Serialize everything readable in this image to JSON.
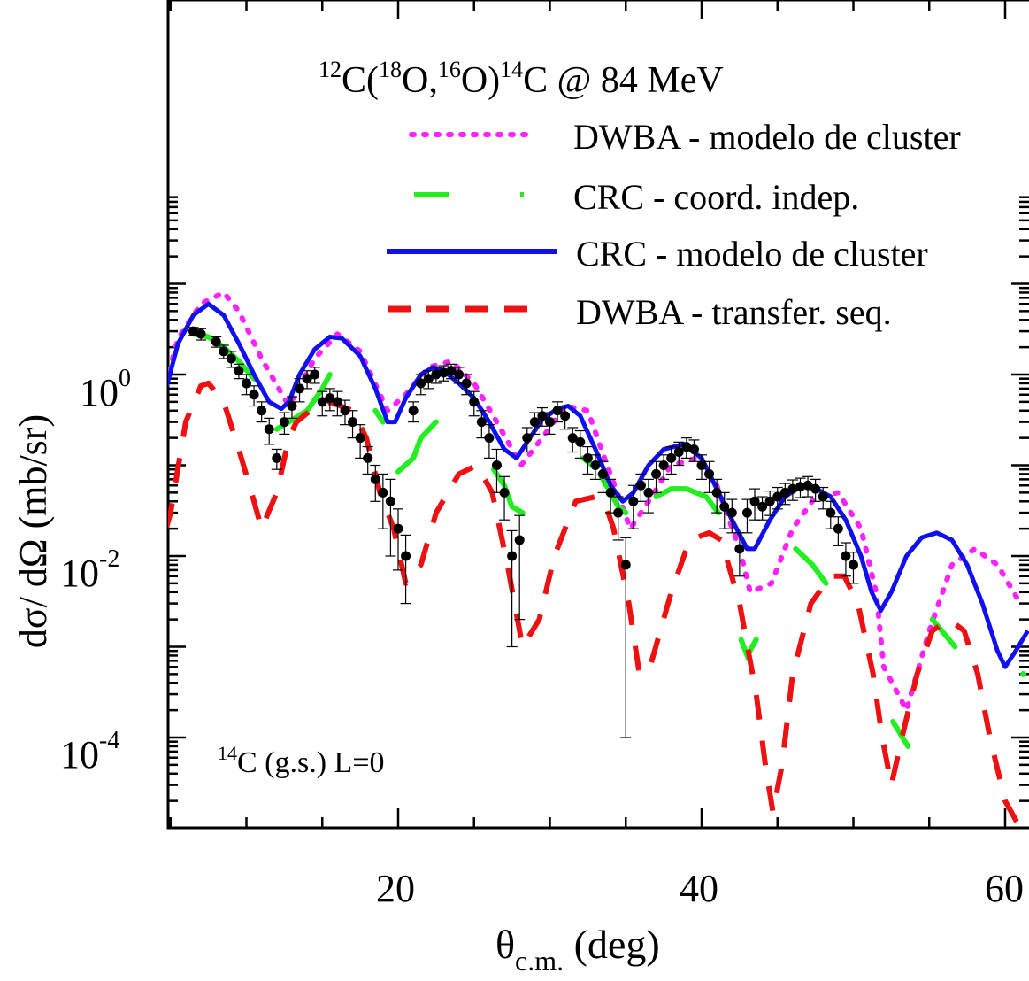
{
  "chart_data": {
    "type": "scatter",
    "title": "12C(18O,16O)14C @ 84 MeV",
    "title_parts": {
      "a1": "12",
      "a2": "C(",
      "a3": "18",
      "a4": "O,",
      "a5": "16",
      "a6": "O)",
      "a7": "14",
      "a8": "C @ 84 MeV"
    },
    "xlabel": "θc.m. (deg)",
    "xlabel_parts": {
      "main": "θ",
      "sub": "c.m.",
      "rest": " (deg)"
    },
    "ylabel": "dσ/ dΩ (mb/sr)",
    "annotation": "14C (g.s.) L=0",
    "annotation_parts": {
      "sup": "14",
      "rest": "C (g.s.) L=0"
    },
    "x_scale": "linear",
    "y_scale": "log",
    "xlim": [
      3,
      61.5
    ],
    "ylim": [
      8e-06,
      40
    ],
    "x_ticks": [
      20,
      40,
      60
    ],
    "x_tick_labels": [
      "20",
      "40",
      "60"
    ],
    "y_tick_labels": [
      {
        "base": "10",
        "exp": "0",
        "value": 1
      },
      {
        "base": "10",
        "exp": "-2",
        "value": 0.01
      },
      {
        "base": "10",
        "exp": "-4",
        "value": 0.0001
      }
    ],
    "grid": false,
    "legend_position": "top-right",
    "series": [
      {
        "name": "DWBA - modelo de cluster",
        "color": "#ff22ff",
        "style": "dotted",
        "x": [
          3,
          4.5,
          5.5,
          7,
          8.5,
          9.5,
          11,
          12.8,
          14.5,
          16,
          17.5,
          19.3,
          20.5,
          22,
          23.5,
          25,
          26.5,
          28.1,
          29.5,
          31,
          32.5,
          33.6,
          35.3,
          36.5,
          38,
          39.7,
          41,
          42.5,
          43.2,
          44.6,
          46,
          47.5,
          49,
          50.5,
          51.5,
          52,
          53.5,
          55,
          56.5,
          58,
          59.5,
          61
        ],
        "y": [
          1.5,
          0.6,
          2.5,
          6,
          8,
          5,
          1.5,
          0.45,
          1.5,
          2.8,
          1.8,
          0.4,
          0.6,
          1.2,
          1.4,
          0.8,
          0.3,
          0.1,
          0.2,
          0.45,
          0.4,
          0.12,
          0.02,
          0.04,
          0.1,
          0.12,
          0.06,
          0.012,
          0.004,
          0.005,
          0.02,
          0.045,
          0.05,
          0.02,
          0.004,
          0.0006,
          0.0002,
          0.0015,
          0.008,
          0.012,
          0.008,
          0.003
        ]
      },
      {
        "name": "CRC - coord. indep.",
        "color": "#22ee22",
        "style": "dash-dot",
        "segments": [
          {
            "x": [
              3,
              3.5,
              4,
              4.5
            ],
            "y": [
              0.3,
              0.12,
              0.15,
              0.2
            ]
          },
          {
            "x": [
              6.5,
              7.5,
              8.5,
              9.5,
              10.5
            ],
            "y": [
              2.8,
              2.6,
              2.0,
              1.4,
              0.9
            ]
          },
          {
            "x": [
              12,
              12.8,
              14,
              15,
              15.5
            ],
            "y": [
              0.25,
              0.3,
              0.4,
              0.7,
              1.0
            ]
          },
          {
            "x": [
              18.5,
              19
            ],
            "y": [
              0.4,
              0.3
            ]
          },
          {
            "x": [
              20,
              21,
              21.5,
              22.5
            ],
            "y": [
              0.085,
              0.12,
              0.2,
              0.3
            ]
          },
          {
            "x": [
              26.3,
              27,
              27.5,
              28.2
            ],
            "y": [
              0.09,
              0.06,
              0.035,
              0.03
            ]
          },
          {
            "x": [
              32.2,
              32.8
            ],
            "y": [
              0.12,
              0.1
            ]
          },
          {
            "x": [
              33.3,
              34,
              34.5,
              35
            ],
            "y": [
              0.08,
              0.05,
              0.035,
              0.03
            ]
          },
          {
            "x": [
              37,
              38,
              39,
              40.3,
              41.1
            ],
            "y": [
              0.045,
              0.055,
              0.055,
              0.045,
              0.03
            ]
          },
          {
            "x": [
              42.6,
              43,
              43.6
            ],
            "y": [
              0.0012,
              0.0008,
              0.0012
            ]
          },
          {
            "x": [
              46.2,
              47.3,
              48.2
            ],
            "y": [
              0.012,
              0.008,
              0.005
            ]
          },
          {
            "x": [
              52.6,
              53.6
            ],
            "y": [
              0.00015,
              8e-05
            ]
          },
          {
            "x": [
              55.2,
              56.7
            ],
            "y": [
              0.002,
              0.001
            ]
          },
          {
            "x": [
              61.2
            ],
            "y": [
              0.0005
            ]
          }
        ]
      },
      {
        "name": "CRC - modelo de cluster",
        "color": "#1010ee",
        "style": "solid",
        "x": [
          3,
          3.5,
          4,
          4.8,
          5.5,
          6.5,
          7.5,
          8.5,
          9.5,
          10.5,
          11.5,
          12.3,
          12.8,
          13.5,
          14.5,
          15.5,
          16.3,
          17.5,
          18.5,
          19.3,
          19.8,
          20.5,
          21.5,
          22.3,
          23,
          24,
          25,
          26,
          27,
          27.8,
          28.5,
          29.5,
          30.5,
          31.2,
          32,
          33,
          34,
          34.8,
          35.5,
          36.5,
          37.5,
          38.8,
          40,
          41,
          42,
          43,
          43.5,
          44.5,
          45.5,
          46.5,
          47.3,
          48.5,
          49.5,
          50.5,
          51.2,
          51.8,
          52.5,
          53.5,
          54.5,
          55.5,
          56.5,
          57.5,
          58.5,
          59.5,
          60,
          60.7,
          61.5
        ],
        "y": [
          0.8,
          0.5,
          0.3,
          0.8,
          2.2,
          4.5,
          6,
          4.5,
          2.2,
          1.0,
          0.5,
          0.42,
          0.5,
          1.0,
          1.9,
          2.6,
          2.5,
          1.6,
          0.7,
          0.3,
          0.3,
          0.55,
          1.0,
          1.2,
          1.1,
          0.8,
          0.55,
          0.3,
          0.15,
          0.12,
          0.18,
          0.32,
          0.42,
          0.45,
          0.35,
          0.15,
          0.06,
          0.04,
          0.05,
          0.1,
          0.15,
          0.17,
          0.12,
          0.055,
          0.025,
          0.012,
          0.012,
          0.025,
          0.045,
          0.058,
          0.058,
          0.045,
          0.025,
          0.01,
          0.004,
          0.0025,
          0.004,
          0.01,
          0.016,
          0.018,
          0.015,
          0.008,
          0.003,
          0.0009,
          0.0006,
          0.0009,
          0.0015
        ]
      },
      {
        "name": "DWBA - transfer. seq.",
        "color": "#ee1111",
        "style": "dashed",
        "x": [
          3,
          3.5,
          4,
          4.5,
          5,
          6,
          7,
          7.5,
          8.5,
          9.5,
          10.5,
          11,
          12,
          12.8,
          13.3,
          14.2,
          15.5,
          17,
          17.9,
          18.8,
          19.7,
          20.5,
          21.5,
          22.5,
          24,
          25.2,
          26.2,
          27.2,
          28.2,
          29.3,
          30.3,
          31.7,
          33,
          33.6,
          34.2,
          35.2,
          35.9,
          36.6,
          38,
          39.2,
          40.5,
          41.3,
          42.5,
          43.6,
          44.2,
          44.7,
          45.3,
          46,
          47.2,
          48.5,
          49.4,
          50.3,
          51.3,
          51.9,
          52.5,
          53.2,
          54.2,
          55.2,
          56.3,
          57.3,
          58.2,
          59,
          60,
          61
        ],
        "y": [
          0.1,
          0.05,
          0.02,
          0.015,
          0.03,
          0.3,
          0.75,
          0.8,
          0.5,
          0.15,
          0.04,
          0.02,
          0.05,
          0.2,
          0.3,
          0.4,
          0.5,
          0.4,
          0.2,
          0.05,
          0.02,
          0.005,
          0.008,
          0.03,
          0.08,
          0.1,
          0.05,
          0.008,
          0.001,
          0.002,
          0.01,
          0.04,
          0.045,
          0.04,
          0.02,
          0.003,
          0.0005,
          0.0006,
          0.004,
          0.015,
          0.018,
          0.015,
          0.003,
          0.0003,
          5e-05,
          1.5e-05,
          5e-05,
          0.0005,
          0.003,
          0.006,
          0.006,
          0.003,
          0.0005,
          0.0001,
          3e-05,
          0.0001,
          0.0005,
          0.0015,
          0.002,
          0.0015,
          0.0005,
          0.0001,
          2e-05,
          1e-05
        ]
      },
      {
        "name": "data",
        "color": "#000000",
        "style": "markers",
        "x": [
          6.5,
          7,
          8,
          8.5,
          9,
          9.5,
          10,
          10.5,
          11,
          11.5,
          12,
          12.5,
          13,
          13.5,
          14,
          14.5,
          15,
          15.5,
          16,
          16.5,
          17,
          17.5,
          18,
          18.5,
          19,
          19.5,
          20,
          20.5,
          21,
          21.5,
          22,
          22.5,
          23,
          23.5,
          24,
          24.5,
          25,
          25.5,
          26,
          26.5,
          27,
          27.5,
          28,
          28.5,
          29,
          29.5,
          30,
          30.5,
          31,
          31.5,
          32,
          32.5,
          33,
          33.5,
          34,
          34.5,
          35,
          35.5,
          36,
          36.5,
          37,
          37.5,
          38,
          38.5,
          39,
          39.5,
          40,
          40.5,
          41,
          41.5,
          42,
          42.5,
          43,
          43.5,
          44,
          44.5,
          45,
          45.5,
          46,
          46.5,
          47,
          47.5,
          48,
          48.5,
          49,
          49.5,
          50
        ],
        "y": [
          3,
          2.8,
          2.3,
          1.8,
          1.5,
          1.1,
          0.8,
          0.6,
          0.4,
          0.25,
          0.12,
          0.3,
          0.45,
          0.7,
          0.9,
          1.0,
          0.5,
          0.55,
          0.5,
          0.4,
          0.3,
          0.2,
          0.12,
          0.07,
          0.05,
          0.04,
          0.02,
          0.01,
          0.4,
          0.8,
          0.9,
          1.0,
          1.05,
          1.1,
          1.0,
          0.8,
          0.5,
          0.3,
          0.2,
          0.1,
          0.05,
          0.01,
          0.015,
          0.2,
          0.3,
          0.35,
          0.3,
          0.4,
          0.35,
          0.2,
          0.18,
          0.12,
          0.1,
          0.08,
          0.05,
          0.03,
          0.008,
          0.04,
          0.06,
          0.05,
          0.08,
          0.1,
          0.12,
          0.14,
          0.16,
          0.15,
          0.1,
          0.08,
          0.05,
          0.035,
          0.03,
          0.012,
          0.03,
          0.04,
          0.035,
          0.04,
          0.045,
          0.05,
          0.055,
          0.058,
          0.06,
          0.055,
          0.045,
          0.03,
          0.02,
          0.01,
          0.008
        ],
        "y_error": [
          0.3,
          0.4,
          0.3,
          0.3,
          0.3,
          0.2,
          0.2,
          0.15,
          0.1,
          0.08,
          0.03,
          0.08,
          0.12,
          0.2,
          0.2,
          0.2,
          0.15,
          0.15,
          0.15,
          0.12,
          0.1,
          0.08,
          0.04,
          0.03,
          0.03,
          0.03,
          0.013,
          0.007,
          0.1,
          0.2,
          0.2,
          0.2,
          0.2,
          0.2,
          0.2,
          0.2,
          0.15,
          0.1,
          0.08,
          0.05,
          0.025,
          0.009,
          0.013,
          0.06,
          0.08,
          0.08,
          0.08,
          0.1,
          0.1,
          0.06,
          0.06,
          0.04,
          0.03,
          0.03,
          0.02,
          0.015,
          0.0079,
          0.02,
          0.02,
          0.02,
          0.03,
          0.03,
          0.04,
          0.04,
          0.04,
          0.04,
          0.03,
          0.03,
          0.02,
          0.015,
          0.012,
          0.006,
          0.012,
          0.015,
          0.01,
          0.012,
          0.012,
          0.013,
          0.014,
          0.014,
          0.015,
          0.015,
          0.012,
          0.01,
          0.007,
          0.004,
          0.003
        ]
      }
    ]
  }
}
